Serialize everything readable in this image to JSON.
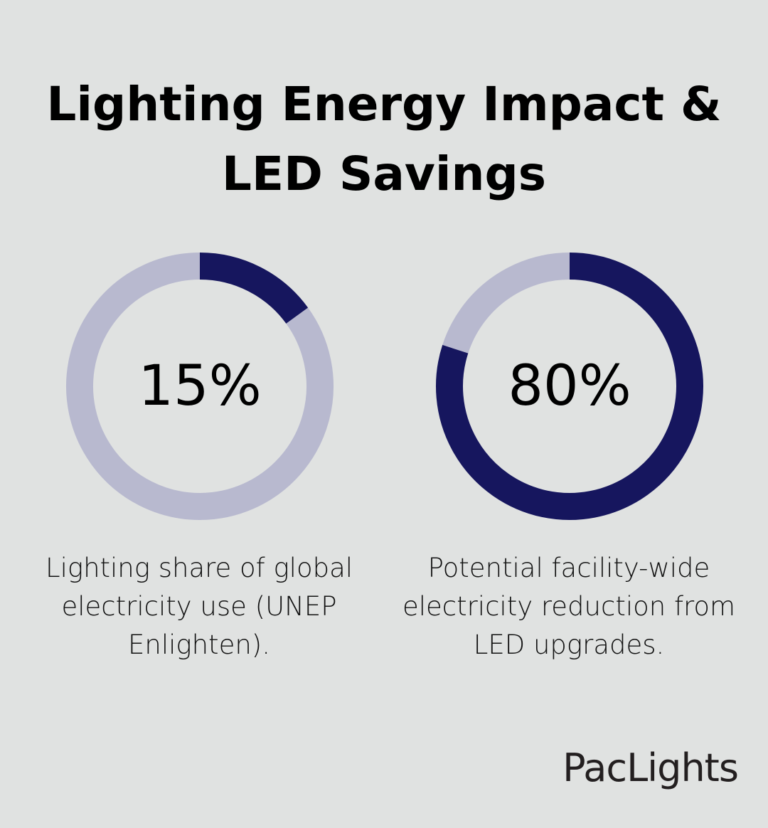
{
  "chart_data": [
    {
      "type": "pie",
      "variant": "donut",
      "value": 15,
      "label": "15%",
      "caption": "Lighting share of global electricity use (UNEP Enlighten).",
      "colors": {
        "filled": "#16165e",
        "remainder": "#b8b9cf"
      }
    },
    {
      "type": "pie",
      "variant": "donut",
      "value": 80,
      "label": "80%",
      "caption": "Potential facility-wide electricity reduction from LED upgrades.",
      "colors": {
        "filled": "#16165e",
        "remainder": "#b8b9cf"
      }
    }
  ],
  "title": "Lighting Energy Impact & LED Savings",
  "logo": "PacLights",
  "colors": {
    "background": "#e0e2e1"
  }
}
